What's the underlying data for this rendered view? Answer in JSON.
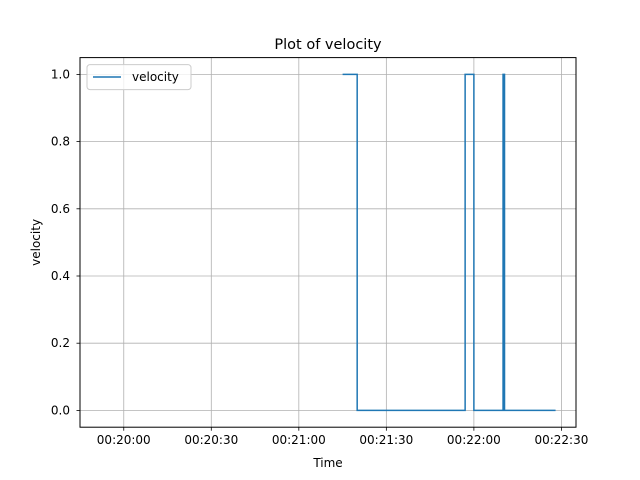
{
  "chart_data": {
    "type": "line",
    "drawstyle": "steps-post",
    "title": "Plot of velocity",
    "xlabel": "Time",
    "ylabel": "velocity",
    "x_tick_labels": [
      "00:20:00",
      "00:20:30",
      "00:21:00",
      "00:21:30",
      "00:22:00",
      "00:22:30"
    ],
    "y_tick_labels": [
      "0.0",
      "0.2",
      "0.4",
      "0.6",
      "0.8",
      "1.0"
    ],
    "y_ticks": [
      0.0,
      0.2,
      0.4,
      0.6,
      0.8,
      1.0
    ],
    "xlim": [
      "00:19:45",
      "00:22:35"
    ],
    "ylim": [
      -0.05,
      1.05
    ],
    "grid": true,
    "legend": {
      "position": "top-left"
    },
    "series": [
      {
        "name": "velocity",
        "color": "#1f77b4",
        "points": [
          {
            "x": "00:21:15",
            "y": 1
          },
          {
            "x": "00:21:20",
            "y": 0
          },
          {
            "x": "00:21:57",
            "y": 1
          },
          {
            "x": "00:22:00",
            "y": 0
          },
          {
            "x": "00:22:10",
            "y": 1
          },
          {
            "x": "00:22:10.5",
            "y": 0
          },
          {
            "x": "00:22:28",
            "y": 0
          }
        ]
      }
    ]
  }
}
